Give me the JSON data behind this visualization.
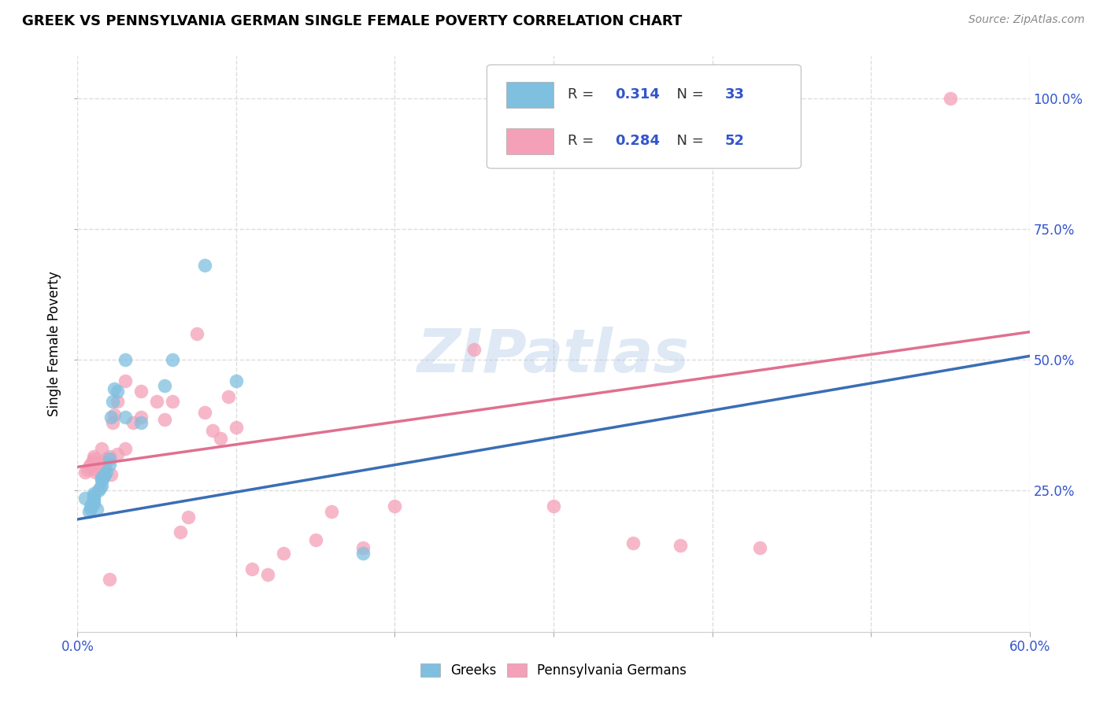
{
  "title": "GREEK VS PENNSYLVANIA GERMAN SINGLE FEMALE POVERTY CORRELATION CHART",
  "source": "Source: ZipAtlas.com",
  "ylabel": "Single Female Poverty",
  "xlim": [
    0.0,
    0.6
  ],
  "ylim": [
    -0.02,
    1.08
  ],
  "xtick_vals": [
    0.0,
    0.1,
    0.2,
    0.3,
    0.4,
    0.5,
    0.6
  ],
  "ytick_vals": [
    0.25,
    0.5,
    0.75,
    1.0
  ],
  "ytick_labels": [
    "25.0%",
    "50.0%",
    "75.0%",
    "100.0%"
  ],
  "greek_color": "#7fbfdf",
  "pa_german_color": "#f4a0b8",
  "greek_line_color": "#3a6eb5",
  "pa_german_line_color": "#e07090",
  "greek_scatter_x": [
    0.005,
    0.007,
    0.008,
    0.008,
    0.009,
    0.01,
    0.01,
    0.01,
    0.01,
    0.01,
    0.012,
    0.013,
    0.014,
    0.015,
    0.015,
    0.015,
    0.016,
    0.017,
    0.018,
    0.02,
    0.02,
    0.021,
    0.022,
    0.023,
    0.025,
    0.03,
    0.03,
    0.04,
    0.055,
    0.06,
    0.08,
    0.1,
    0.18
  ],
  "greek_scatter_y": [
    0.235,
    0.21,
    0.215,
    0.22,
    0.225,
    0.225,
    0.23,
    0.235,
    0.24,
    0.245,
    0.215,
    0.25,
    0.255,
    0.26,
    0.27,
    0.275,
    0.275,
    0.28,
    0.285,
    0.3,
    0.31,
    0.39,
    0.42,
    0.445,
    0.44,
    0.5,
    0.39,
    0.38,
    0.45,
    0.5,
    0.68,
    0.46,
    0.13
  ],
  "pa_german_scatter_x": [
    0.005,
    0.006,
    0.007,
    0.008,
    0.009,
    0.01,
    0.01,
    0.011,
    0.012,
    0.013,
    0.014,
    0.015,
    0.015,
    0.016,
    0.017,
    0.018,
    0.02,
    0.02,
    0.021,
    0.022,
    0.023,
    0.025,
    0.025,
    0.03,
    0.03,
    0.035,
    0.04,
    0.04,
    0.05,
    0.055,
    0.06,
    0.065,
    0.07,
    0.075,
    0.08,
    0.085,
    0.09,
    0.095,
    0.1,
    0.11,
    0.12,
    0.13,
    0.15,
    0.16,
    0.18,
    0.2,
    0.25,
    0.3,
    0.35,
    0.38,
    0.43,
    0.55
  ],
  "pa_german_scatter_y": [
    0.285,
    0.29,
    0.295,
    0.3,
    0.305,
    0.31,
    0.315,
    0.285,
    0.29,
    0.295,
    0.3,
    0.305,
    0.33,
    0.28,
    0.295,
    0.31,
    0.08,
    0.315,
    0.28,
    0.38,
    0.395,
    0.32,
    0.42,
    0.33,
    0.46,
    0.38,
    0.39,
    0.44,
    0.42,
    0.385,
    0.42,
    0.17,
    0.2,
    0.55,
    0.4,
    0.365,
    0.35,
    0.43,
    0.37,
    0.1,
    0.09,
    0.13,
    0.155,
    0.21,
    0.14,
    0.22,
    0.52,
    0.22,
    0.15,
    0.145,
    0.14,
    1.0
  ],
  "greek_R": "0.314",
  "greek_N": "33",
  "pa_german_R": "0.284",
  "pa_german_N": "52",
  "watermark": "ZIPatlas",
  "background_color": "#ffffff",
  "grid_color": "#dddddd",
  "legend_text_color": "#3355cc"
}
